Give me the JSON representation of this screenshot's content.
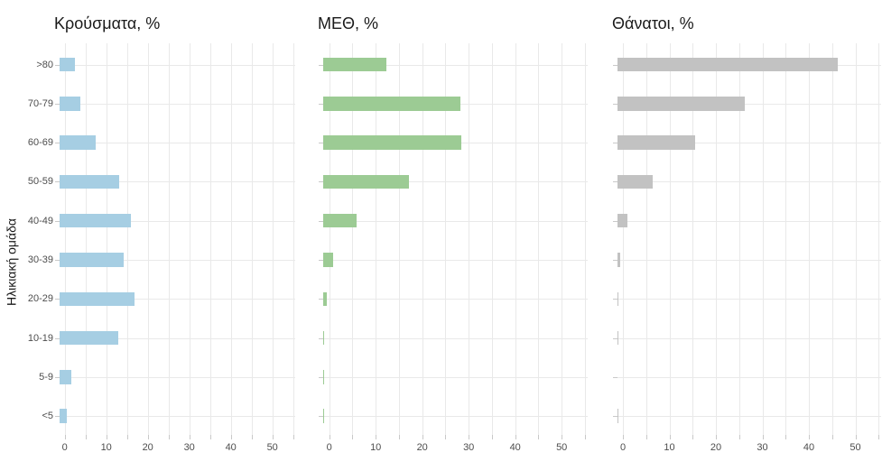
{
  "figure": {
    "background": "#FFFFFF",
    "y_axis_title": "Ηλικιακή ομάδα",
    "categories": [
      ">80",
      "70-79",
      "60-69",
      "50-59",
      "40-49",
      "30-39",
      "20-29",
      "10-19",
      "5-9",
      "<5"
    ],
    "x_axis": {
      "labeled_ticks": [
        0,
        10,
        20,
        30,
        40,
        50
      ],
      "tick_step": 5,
      "max_tick": 55
    },
    "grid_color": "#E9E9E9",
    "tick_color": "#C9C9C9",
    "axis_text_color": "#4D4D4D",
    "title_color": "#1A1A1A"
  },
  "chart_data": [
    {
      "type": "bar",
      "orientation": "horizontal",
      "title": "Κρούσματα, %",
      "xlabel": "",
      "ylabel": "Ηλικιακή ομάδα",
      "xlim": [
        0,
        55
      ],
      "grid": true,
      "color": "#A6CEE3",
      "categories": [
        ">80",
        "70-79",
        "60-69",
        "50-59",
        "40-49",
        "30-39",
        "20-29",
        "10-19",
        "5-9",
        "<5"
      ],
      "values": [
        3.8,
        5.0,
        8.7,
        14.3,
        17.2,
        15.5,
        18.1,
        14.2,
        2.9,
        1.8
      ]
    },
    {
      "type": "bar",
      "orientation": "horizontal",
      "title": "ΜΕΘ, %",
      "xlabel": "",
      "ylabel": "",
      "xlim": [
        0,
        55
      ],
      "grid": true,
      "color": "#9CCB94",
      "categories": [
        ">80",
        "70-79",
        "60-69",
        "50-59",
        "40-49",
        "30-39",
        "20-29",
        "10-19",
        "5-9",
        "<5"
      ],
      "values": [
        13.5,
        29.6,
        29.8,
        18.4,
        7.2,
        2.2,
        0.8,
        0.25,
        0.1,
        0.2
      ]
    },
    {
      "type": "bar",
      "orientation": "horizontal",
      "title": "Θάνατοι, %",
      "xlabel": "",
      "ylabel": "",
      "xlim": [
        0,
        55
      ],
      "grid": true,
      "color": "#C2C2C2",
      "categories": [
        ">80",
        "70-79",
        "60-69",
        "50-59",
        "40-49",
        "30-39",
        "20-29",
        "10-19",
        "5-9",
        "<5"
      ],
      "values": [
        47.4,
        27.3,
        16.7,
        7.5,
        2.1,
        0.6,
        0.15,
        0.15,
        0,
        0.1
      ]
    }
  ]
}
